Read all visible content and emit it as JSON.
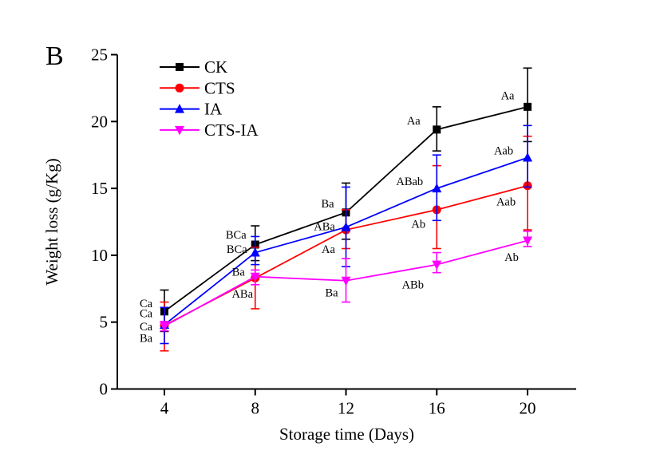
{
  "figure": {
    "panel_label": "B"
  },
  "chart_data": {
    "type": "line",
    "title": "",
    "xlabel": "Storage time (Days)",
    "ylabel": "Weight loss (g/Kg)",
    "x": [
      4,
      8,
      12,
      16,
      20
    ],
    "xticks": [
      4,
      8,
      12,
      16,
      20
    ],
    "yticks": [
      0,
      5,
      10,
      15,
      20,
      25
    ],
    "ylim": [
      0,
      25
    ],
    "grid": false,
    "legend_position": "top-left-inside",
    "legend_order": [
      "CK",
      "CTS",
      "IA",
      "CTS-IA"
    ],
    "series": [
      {
        "name": "CK",
        "color": "#000000",
        "marker": "square",
        "values": [
          5.8,
          10.8,
          13.2,
          19.4,
          21.1
        ],
        "err_plus": [
          1.6,
          1.4,
          2.2,
          1.7,
          2.9
        ],
        "err_minus": [
          1.5,
          1.2,
          2.0,
          1.6,
          2.6
        ],
        "point_labels": [
          "Ca",
          "BCa",
          "Ba",
          "Aa",
          "Aa"
        ],
        "label_offsets": [
          [
            -23,
            -10
          ],
          [
            -24,
            -12
          ],
          [
            -23,
            -11
          ],
          [
            -29,
            -11
          ],
          [
            -25,
            -14
          ]
        ]
      },
      {
        "name": "CTS",
        "color": "#ff0000",
        "marker": "circle",
        "values": [
          4.75,
          8.3,
          11.9,
          13.4,
          15.2
        ],
        "err_plus": [
          1.75,
          2.3,
          1.5,
          3.3,
          3.7
        ],
        "err_minus": [
          1.9,
          2.3,
          1.4,
          2.9,
          3.3
        ],
        "point_labels": [
          "Ca",
          "ABa",
          "Aa",
          "Ab",
          "Aab"
        ],
        "label_offsets": [
          [
            -23,
            -15
          ],
          [
            -16,
            20
          ],
          [
            -22,
            24
          ],
          [
            -23,
            18
          ],
          [
            -27,
            20
          ]
        ]
      },
      {
        "name": "IA",
        "color": "#0000ff",
        "marker": "triangle-up",
        "values": [
          4.8,
          10.2,
          12.1,
          15.0,
          17.3
        ],
        "err_plus": [
          1.3,
          1.2,
          3.0,
          2.5,
          2.4
        ],
        "err_minus": [
          1.4,
          0.9,
          2.95,
          2.4,
          2.2
        ],
        "point_labels": [
          "Ca",
          "BCa",
          "ABa",
          "ABab",
          "Aab"
        ],
        "label_offsets": [
          [
            -23,
            2
          ],
          [
            -23,
            -4
          ],
          [
            -27,
            -1
          ],
          [
            -34,
            -9
          ],
          [
            -30,
            -9
          ]
        ]
      },
      {
        "name": "CTS-IA",
        "color": "#ff00ff",
        "marker": "triangle-down",
        "values": [
          4.7,
          8.4,
          8.1,
          9.3,
          11.1
        ],
        "err_plus": [
          0.35,
          0.5,
          1.65,
          0.9,
          0.7
        ],
        "err_minus": [
          0.35,
          0.6,
          1.6,
          0.6,
          0.45
        ],
        "point_labels": [
          "Ba",
          "Ba",
          "Ba",
          "ABb",
          "Ab"
        ],
        "label_offsets": [
          [
            -23,
            15
          ],
          [
            -21,
            -6
          ],
          [
            -18,
            15
          ],
          [
            -30,
            25
          ],
          [
            -20,
            21
          ]
        ]
      }
    ]
  }
}
